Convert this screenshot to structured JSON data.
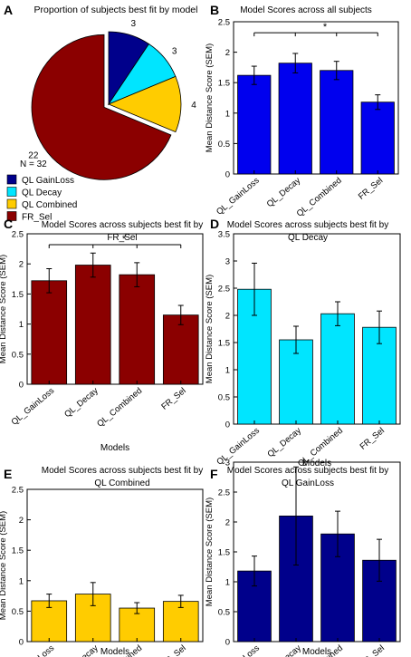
{
  "figure": {
    "panel_letters": [
      "A",
      "B",
      "C",
      "D",
      "E",
      "F"
    ]
  },
  "chart_data": [
    {
      "panel": "A",
      "type": "pie",
      "title": "Proportion of subjects best fit by model",
      "slices": [
        {
          "label": "QL GainLoss",
          "value": 3,
          "color": "#00008b",
          "exploded": false
        },
        {
          "label": "QL Decay",
          "value": 3,
          "color": "#00e5ff",
          "exploded": false
        },
        {
          "label": "QL Combined",
          "value": 4,
          "color": "#ffcc00",
          "exploded": false
        },
        {
          "label": "FR_Sel",
          "value": 22,
          "color": "#8b0000",
          "exploded": true
        }
      ],
      "annotation": "N = 32",
      "legend": [
        "QL GainLoss",
        "QL Decay",
        "QL Combined",
        "FR_Sel"
      ],
      "legend_position": "bottom-left"
    },
    {
      "panel": "B",
      "type": "bar",
      "title": "Model Scores across all subjects",
      "title_line2": "",
      "xlabel": "",
      "ylabel": "Mean Distance Score (SEM)",
      "categories": [
        "QL_GainLoss",
        "QL_Decay",
        "QL_Combined",
        "FR_Sel"
      ],
      "values": [
        1.62,
        1.82,
        1.7,
        1.18
      ],
      "errors": [
        0.15,
        0.16,
        0.15,
        0.12
      ],
      "ylim": [
        0,
        2.5
      ],
      "yticks": [
        0,
        0.5,
        1,
        1.5,
        2,
        2.5
      ],
      "color": "#0000ee",
      "significance": {
        "from": 0,
        "to": 3,
        "level": 2.32,
        "label": "*"
      }
    },
    {
      "panel": "C",
      "type": "bar",
      "title": "Model Scores across subjects best fit by",
      "title_line2": "FR_Sel",
      "xlabel": "Models",
      "ylabel": "Mean Distance Score (SEM)",
      "categories": [
        "QL_GainLoss",
        "QL_Decay",
        "QL_Combined",
        "FR_Sel"
      ],
      "values": [
        1.72,
        1.98,
        1.82,
        1.15
      ],
      "errors": [
        0.2,
        0.2,
        0.2,
        0.16
      ],
      "ylim": [
        0,
        2.5
      ],
      "yticks": [
        0,
        0.5,
        1,
        1.5,
        2,
        2.5
      ],
      "color": "#8b0000",
      "significance": {
        "from": 0,
        "to": 3,
        "level": 2.32,
        "label": "*"
      }
    },
    {
      "panel": "D",
      "type": "bar",
      "title": "Model Scores across subjects best fit by",
      "title_line2": "QL Decay",
      "xlabel": "Models",
      "ylabel": "Mean Distance Score (SEM)",
      "categories": [
        "QL_GainLoss",
        "QL_Decay",
        "QL_Combined",
        "FR_Sel"
      ],
      "values": [
        2.48,
        1.55,
        2.03,
        1.78
      ],
      "errors": [
        0.48,
        0.25,
        0.22,
        0.3
      ],
      "ylim": [
        0,
        3.5
      ],
      "yticks": [
        0,
        0.5,
        1,
        1.5,
        2,
        2.5,
        3,
        3.5
      ],
      "color": "#00e5ff",
      "significance": null
    },
    {
      "panel": "E",
      "type": "bar",
      "title": "Model Scores across subjects best fit by",
      "title_line2": "QL Combined",
      "xlabel": "Models",
      "ylabel": "Mean Distance Score (SEM)",
      "categories": [
        "QL_GainLoss",
        "QL_Decay",
        "QL_Combined",
        "FR_Sel"
      ],
      "values": [
        0.67,
        0.78,
        0.55,
        0.66
      ],
      "errors": [
        0.11,
        0.19,
        0.09,
        0.1
      ],
      "ylim": [
        0,
        2.5
      ],
      "yticks": [
        0,
        0.5,
        1,
        1.5,
        2,
        2.5
      ],
      "color": "#ffcc00",
      "significance": null
    },
    {
      "panel": "F",
      "type": "bar",
      "title": "Model Scores across subjects best fit by",
      "title_line2": "QL GainLoss",
      "xlabel": "Models",
      "ylabel": "Mean Distance Score (SEM)",
      "categories": [
        "QL_GainLoss",
        "QL_Decay",
        "QL_Combined",
        "FR_Sel"
      ],
      "values": [
        1.18,
        2.1,
        1.8,
        1.36
      ],
      "errors": [
        0.25,
        0.82,
        0.38,
        0.35
      ],
      "ylim": [
        0,
        3
      ],
      "yticks": [
        0,
        0.5,
        1,
        1.5,
        2,
        2.5,
        3
      ],
      "color": "#00008b",
      "significance": null
    }
  ]
}
